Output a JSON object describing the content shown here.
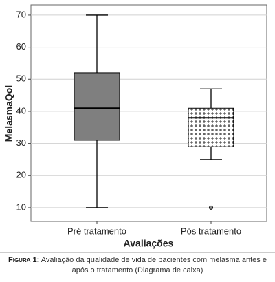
{
  "chart_data": {
    "type": "box",
    "y_label": "MelasmaQol",
    "x_label": "Avaliações",
    "categories": [
      "Pré tratamento",
      "Pós tratamento"
    ],
    "boxes": [
      {
        "min": 10,
        "q1": 31,
        "median": 41,
        "q3": 52,
        "max": 70,
        "outliers": [],
        "color": "#7f7f7f",
        "pattern": false
      },
      {
        "min": 25,
        "q1": 29,
        "median": 38,
        "q3": 41,
        "max": 47,
        "outliers": [
          10
        ],
        "color": "#ffffff",
        "pattern": true
      }
    ],
    "ylim": [
      5.7,
      73.2
    ],
    "yticks": [
      10,
      20,
      30,
      40,
      50,
      60,
      70
    ],
    "grid": true
  },
  "caption": {
    "label": "Figura 1:",
    "text": "Avaliação da qualidade de vida de pacientes com melasma antes e após o tratamento (Diagrama de caixa)"
  }
}
